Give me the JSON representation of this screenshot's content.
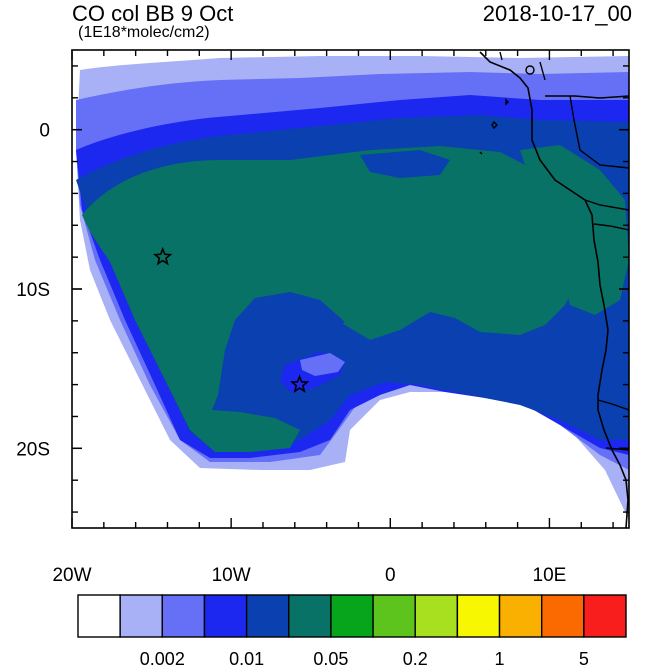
{
  "header": {
    "title": "CO col BB 9 Oct",
    "units": "(1E18*molec/cm2)",
    "datetime": "2018-10-17_00"
  },
  "axes": {
    "x_ticks": [
      {
        "value": -20,
        "label": "20W"
      },
      {
        "value": -10,
        "label": "10W"
      },
      {
        "value": 0,
        "label": "0"
      },
      {
        "value": 10,
        "label": "10E"
      }
    ],
    "y_ticks": [
      {
        "value": 0,
        "label": "0"
      },
      {
        "value": -10,
        "label": "10S"
      },
      {
        "value": -20,
        "label": "20S"
      }
    ],
    "lon_range": [
      -20,
      15
    ],
    "lat_range": [
      -25,
      5
    ]
  },
  "markers": [
    {
      "name": "star-marker-north",
      "lon": -14.3,
      "lat": -8.0
    },
    {
      "name": "star-marker-south",
      "lon": -5.7,
      "lat": -16.0
    }
  ],
  "colorbar": {
    "colors": [
      "#ffffff",
      "#a8b0f6",
      "#6670f7",
      "#1c28f0",
      "#0a40b0",
      "#077265",
      "#07a51c",
      "#5cc41c",
      "#a8e01f",
      "#f6f700",
      "#f9b000",
      "#fa6a00",
      "#f91e1e"
    ],
    "labels": [
      {
        "after_box": 2,
        "text": "0.002"
      },
      {
        "after_box": 4,
        "text": "0.01"
      },
      {
        "after_box": 6,
        "text": "0.05"
      },
      {
        "after_box": 8,
        "text": "0.2"
      },
      {
        "after_box": 10,
        "text": "1"
      },
      {
        "after_box": 12,
        "text": "5"
      }
    ]
  }
}
